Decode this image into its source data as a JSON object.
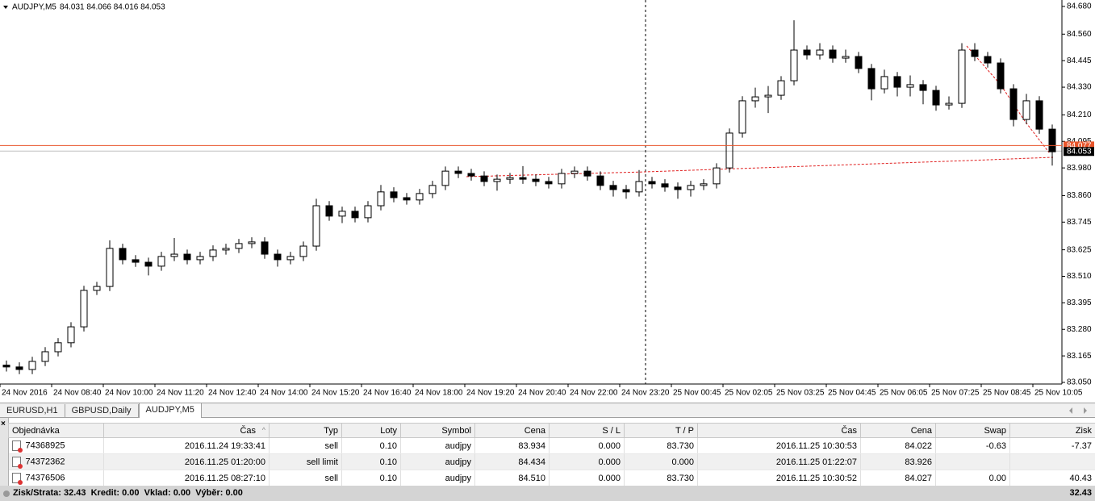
{
  "chart_data": {
    "type": "candlestick",
    "title": "AUDJPY,M5",
    "ohlc_text": "84.031 84.066 84.016 84.053",
    "open": [
      83.125,
      83.117,
      83.106,
      83.141,
      83.183,
      83.222,
      83.291,
      83.449,
      83.466,
      83.631,
      83.582,
      83.571,
      83.554,
      83.596,
      83.606,
      83.582,
      83.596,
      83.624,
      83.631,
      83.652,
      83.659,
      83.606,
      83.582,
      83.596,
      83.641,
      83.816,
      83.771,
      83.792,
      83.764,
      83.816,
      83.876,
      83.851,
      83.841,
      83.869,
      83.904,
      83.966,
      83.956,
      83.945,
      83.921,
      83.931,
      83.938,
      83.931,
      83.921,
      83.911,
      83.956,
      83.966,
      83.945,
      83.904,
      83.886,
      83.876,
      83.921,
      83.911,
      83.897,
      83.886,
      83.904,
      83.911,
      83.98,
      84.131,
      84.271,
      84.288,
      84.295,
      84.358,
      84.491,
      84.47,
      84.491,
      84.456,
      84.463,
      84.411,
      84.323,
      84.376,
      84.33,
      84.341,
      84.316,
      84.253,
      84.26,
      84.491,
      84.463,
      84.435,
      84.323,
      84.19,
      84.271,
      84.148
    ],
    "high": [
      83.145,
      83.137,
      83.161,
      83.203,
      83.242,
      83.311,
      83.469,
      83.486,
      83.666,
      83.651,
      83.602,
      83.591,
      83.616,
      83.676,
      83.626,
      83.616,
      83.644,
      83.651,
      83.672,
      83.679,
      83.679,
      83.626,
      83.616,
      83.661,
      83.846,
      83.836,
      83.812,
      83.812,
      83.836,
      83.906,
      83.896,
      83.871,
      83.889,
      83.924,
      83.986,
      83.986,
      83.976,
      83.965,
      83.951,
      83.958,
      83.988,
      83.951,
      83.941,
      83.976,
      83.986,
      83.986,
      83.965,
      83.924,
      83.906,
      83.971,
      83.941,
      83.931,
      83.917,
      83.924,
      83.931,
      84.0,
      84.151,
      84.291,
      84.328,
      84.335,
      84.378,
      84.62,
      84.511,
      84.521,
      84.511,
      84.493,
      84.483,
      84.431,
      84.406,
      84.396,
      84.381,
      84.361,
      84.336,
      84.29,
      84.521,
      84.521,
      84.483,
      84.455,
      84.343,
      84.301,
      84.291,
      84.168
    ],
    "low": [
      83.097,
      83.086,
      83.086,
      83.121,
      83.163,
      83.202,
      83.271,
      83.429,
      83.446,
      83.562,
      83.551,
      83.514,
      83.534,
      83.576,
      83.562,
      83.562,
      83.576,
      83.604,
      83.611,
      83.632,
      83.586,
      83.552,
      83.562,
      83.576,
      83.621,
      83.751,
      83.741,
      83.744,
      83.744,
      83.796,
      83.831,
      83.821,
      83.821,
      83.849,
      83.884,
      83.936,
      83.925,
      83.901,
      83.881,
      83.911,
      83.911,
      83.901,
      83.891,
      83.891,
      83.936,
      83.925,
      83.884,
      83.856,
      83.846,
      83.856,
      83.891,
      83.877,
      83.846,
      83.856,
      83.884,
      83.891,
      83.96,
      84.111,
      84.241,
      84.218,
      84.275,
      84.338,
      84.45,
      84.45,
      84.436,
      84.436,
      84.391,
      84.273,
      84.303,
      84.29,
      84.29,
      84.256,
      84.228,
      84.233,
      84.24,
      84.443,
      84.415,
      84.303,
      84.16,
      84.17,
      84.128,
      83.99
    ],
    "close": [
      83.117,
      83.106,
      83.141,
      83.183,
      83.222,
      83.291,
      83.449,
      83.466,
      83.631,
      83.582,
      83.571,
      83.554,
      83.596,
      83.606,
      83.582,
      83.596,
      83.624,
      83.631,
      83.652,
      83.659,
      83.606,
      83.582,
      83.596,
      83.641,
      83.816,
      83.771,
      83.792,
      83.764,
      83.816,
      83.876,
      83.851,
      83.841,
      83.869,
      83.904,
      83.966,
      83.956,
      83.945,
      83.921,
      83.931,
      83.938,
      83.931,
      83.921,
      83.911,
      83.956,
      83.966,
      83.945,
      83.904,
      83.886,
      83.876,
      83.921,
      83.911,
      83.897,
      83.886,
      83.904,
      83.911,
      83.98,
      84.131,
      84.271,
      84.288,
      84.295,
      84.358,
      84.491,
      84.47,
      84.491,
      84.456,
      84.463,
      84.411,
      84.323,
      84.376,
      84.33,
      84.341,
      84.316,
      84.253,
      84.26,
      84.491,
      84.463,
      84.435,
      84.323,
      84.19,
      84.271,
      84.148,
      84.05
    ],
    "bull_color": "#ffffff",
    "bear_color": "#000000",
    "line_color": "#000000",
    "xlim": [
      0,
      82.25
    ],
    "xticks": [
      {
        "value": 0,
        "label": "24 Nov 2016"
      },
      {
        "value": 4,
        "label": "24 Nov 08:40"
      },
      {
        "value": 8,
        "label": "24 Nov 10:00"
      },
      {
        "value": 12,
        "label": "24 Nov 11:20"
      },
      {
        "value": 16,
        "label": "24 Nov 12:40"
      },
      {
        "value": 20,
        "label": "24 Nov 14:00"
      },
      {
        "value": 24,
        "label": "24 Nov 15:20"
      },
      {
        "value": 28,
        "label": "24 Nov 16:40"
      },
      {
        "value": 32,
        "label": "24 Nov 18:00"
      },
      {
        "value": 36,
        "label": "24 Nov 19:20"
      },
      {
        "value": 40,
        "label": "24 Nov 20:40"
      },
      {
        "value": 44,
        "label": "24 Nov 22:00"
      },
      {
        "value": 48,
        "label": "24 Nov 23:20"
      },
      {
        "value": 52,
        "label": "25 Nov 00:45"
      },
      {
        "value": 56,
        "label": "25 Nov 02:05"
      },
      {
        "value": 60,
        "label": "25 Nov 03:25"
      },
      {
        "value": 64,
        "label": "25 Nov 04:45"
      },
      {
        "value": 68,
        "label": "25 Nov 06:05"
      },
      {
        "value": 72,
        "label": "25 Nov 07:25"
      },
      {
        "value": 76,
        "label": "25 Nov 08:45"
      },
      {
        "value": 80,
        "label": "25 Nov 10:05"
      }
    ],
    "ylim": [
      83.043,
      84.708
    ],
    "yticks": [
      {
        "value": 84.68,
        "label": "84.680"
      },
      {
        "value": 84.56,
        "label": "84.560"
      },
      {
        "value": 84.445,
        "label": "84.445"
      },
      {
        "value": 84.33,
        "label": "84.330"
      },
      {
        "value": 84.21,
        "label": "84.210"
      },
      {
        "value": 84.095,
        "label": "84.095"
      },
      {
        "value": 83.98,
        "label": "83.980"
      },
      {
        "value": 83.86,
        "label": "83.860"
      },
      {
        "value": 83.745,
        "label": "83.745"
      },
      {
        "value": 83.625,
        "label": "83.625"
      },
      {
        "value": 83.51,
        "label": "83.510"
      },
      {
        "value": 83.395,
        "label": "83.395"
      },
      {
        "value": 83.28,
        "label": "83.280"
      },
      {
        "value": 83.165,
        "label": "83.165"
      },
      {
        "value": 83.05,
        "label": "83.050"
      }
    ],
    "grid": false,
    "price_lines": [
      {
        "value": 84.077,
        "label": "84.077",
        "color": "#e8552b"
      },
      {
        "value": 84.053,
        "label": "84.053",
        "color": "#000000"
      }
    ]
  },
  "tabs": [
    {
      "label": "EURUSD,H1",
      "active": false
    },
    {
      "label": "GBPUSD,Daily",
      "active": false
    },
    {
      "label": "AUDJPY,M5",
      "active": true
    }
  ],
  "table": {
    "columns": [
      "Objednávka",
      "Čas",
      "Typ",
      "Loty",
      "Symbol",
      "Cena",
      "S / L",
      "T / P",
      "Čas",
      "Cena",
      "Swap",
      "Zisk"
    ],
    "rows": [
      [
        "74368925",
        "2016.11.24 19:33:41",
        "sell",
        "0.10",
        "audjpy",
        "83.934",
        "0.000",
        "83.730",
        "2016.11.25 10:30:53",
        "84.022",
        "-0.63",
        "-7.37"
      ],
      [
        "74372362",
        "2016.11.25 01:20:00",
        "sell limit",
        "0.10",
        "audjpy",
        "84.434",
        "0.000",
        "0.000",
        "2016.11.25 01:22:07",
        "83.926",
        null,
        null
      ],
      [
        "74376506",
        "2016.11.25 08:27:10",
        "sell",
        "0.10",
        "audjpy",
        "84.510",
        "0.000",
        "83.730",
        "2016.11.25 10:30:52",
        "84.027",
        "0.00",
        "40.43"
      ]
    ]
  },
  "footer": {
    "summary": "Zisk/Strata: 32.43  Kredit: 0.00  Vklad: 0.00  Výběr: 0.00",
    "total": "32.43"
  }
}
